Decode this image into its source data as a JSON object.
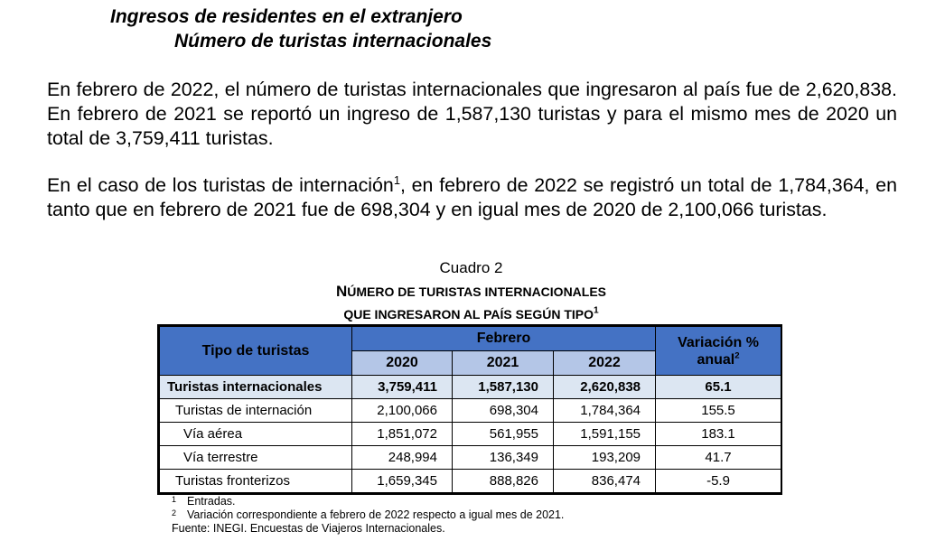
{
  "headings": {
    "line1": "Ingresos de residentes en el extranjero",
    "line2": "Número de turistas internacionales"
  },
  "paragraphs": {
    "p1": "En febrero de 2022, el número de turistas internacionales que ingresaron al país fue de 2,620,838. En febrero de 2021 se reportó un ingreso de 1,587,130 turistas y para el mismo mes de 2020 un total de 3,759,411 turistas.",
    "p2_before": "En el caso de los turistas de internación",
    "p2_sup": "1",
    "p2_after": ", en febrero de 2022 se registró un total de 1,784,364, en tanto que en febrero de 2021 fue de 698,304 y en igual mes de 2020 de 2,100,066 turistas."
  },
  "table_caption": {
    "label": "Cuadro 2",
    "title_line1_first": "N",
    "title_line1_rest": "ÚMERO DE TURISTAS INTERNACIONALES",
    "title_line2": "QUE INGRESARON AL PAÍS SEGÚN TIPO",
    "title_sup": "1"
  },
  "table": {
    "col_type": "Tipo de turistas",
    "col_group": "Febrero",
    "years": [
      "2020",
      "2021",
      "2022"
    ],
    "col_var_line1": "Variación %",
    "col_var_line2": "anual",
    "col_var_sup": "2",
    "rows": [
      {
        "label": "Turistas internacionales",
        "v2020": "3,759,411",
        "v2021": "1,587,130",
        "v2022": "2,620,838",
        "var": "65.1"
      },
      {
        "label": "Turistas de internación",
        "v2020": "2,100,066",
        "v2021": "698,304",
        "v2022": "1,784,364",
        "var": "155.5"
      },
      {
        "label": "Vía aérea",
        "v2020": "1,851,072",
        "v2021": "561,955",
        "v2022": "1,591,155",
        "var": "183.1"
      },
      {
        "label": "Vía terrestre",
        "v2020": "248,994",
        "v2021": "136,349",
        "v2022": "193,209",
        "var": "41.7"
      },
      {
        "label": "Turistas fronterizos",
        "v2020": "1,659,345",
        "v2021": "888,826",
        "v2022": "836,474",
        "var": "-5.9"
      }
    ]
  },
  "footnotes": {
    "n1_mark": "1",
    "n1_text": "Entradas.",
    "n2_mark": "2",
    "n2_text": "Variación correspondiente a febrero de 2022 respecto a igual mes de 2021.",
    "source": "Fuente: INEGI. Encuestas de Viajeros Internacionales."
  }
}
